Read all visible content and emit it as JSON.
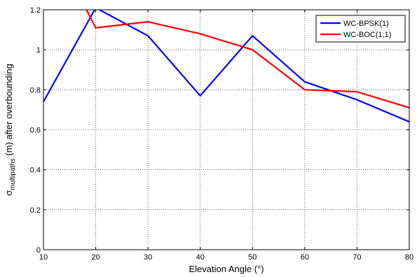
{
  "chart_data": {
    "type": "line",
    "x": [
      10,
      20,
      30,
      40,
      50,
      60,
      70,
      80
    ],
    "xlabel": "Elevation Angle (°)",
    "ylabel": {
      "prefix": "σ",
      "subscript": "multipaths",
      "suffix": " (m) after overbounding"
    },
    "xlim": [
      10,
      80
    ],
    "ylim": [
      0,
      1.2
    ],
    "xticks": [
      10,
      20,
      30,
      40,
      50,
      60,
      70,
      80
    ],
    "yticks": [
      0,
      0.2,
      0.4,
      0.6,
      0.8,
      1,
      1.2
    ],
    "grid": true,
    "legend_position": "top-right",
    "series": [
      {
        "name": "WC-BPSK(1)",
        "color": "#0000ff",
        "values": [
          0.74,
          1.21,
          1.07,
          0.77,
          1.07,
          0.84,
          0.75,
          0.64
        ]
      },
      {
        "name": "WC-BOC(1,1)",
        "color": "#ff0000",
        "values": [
          1.62,
          1.11,
          1.14,
          1.08,
          1.0,
          0.8,
          0.79,
          0.71
        ]
      }
    ]
  }
}
